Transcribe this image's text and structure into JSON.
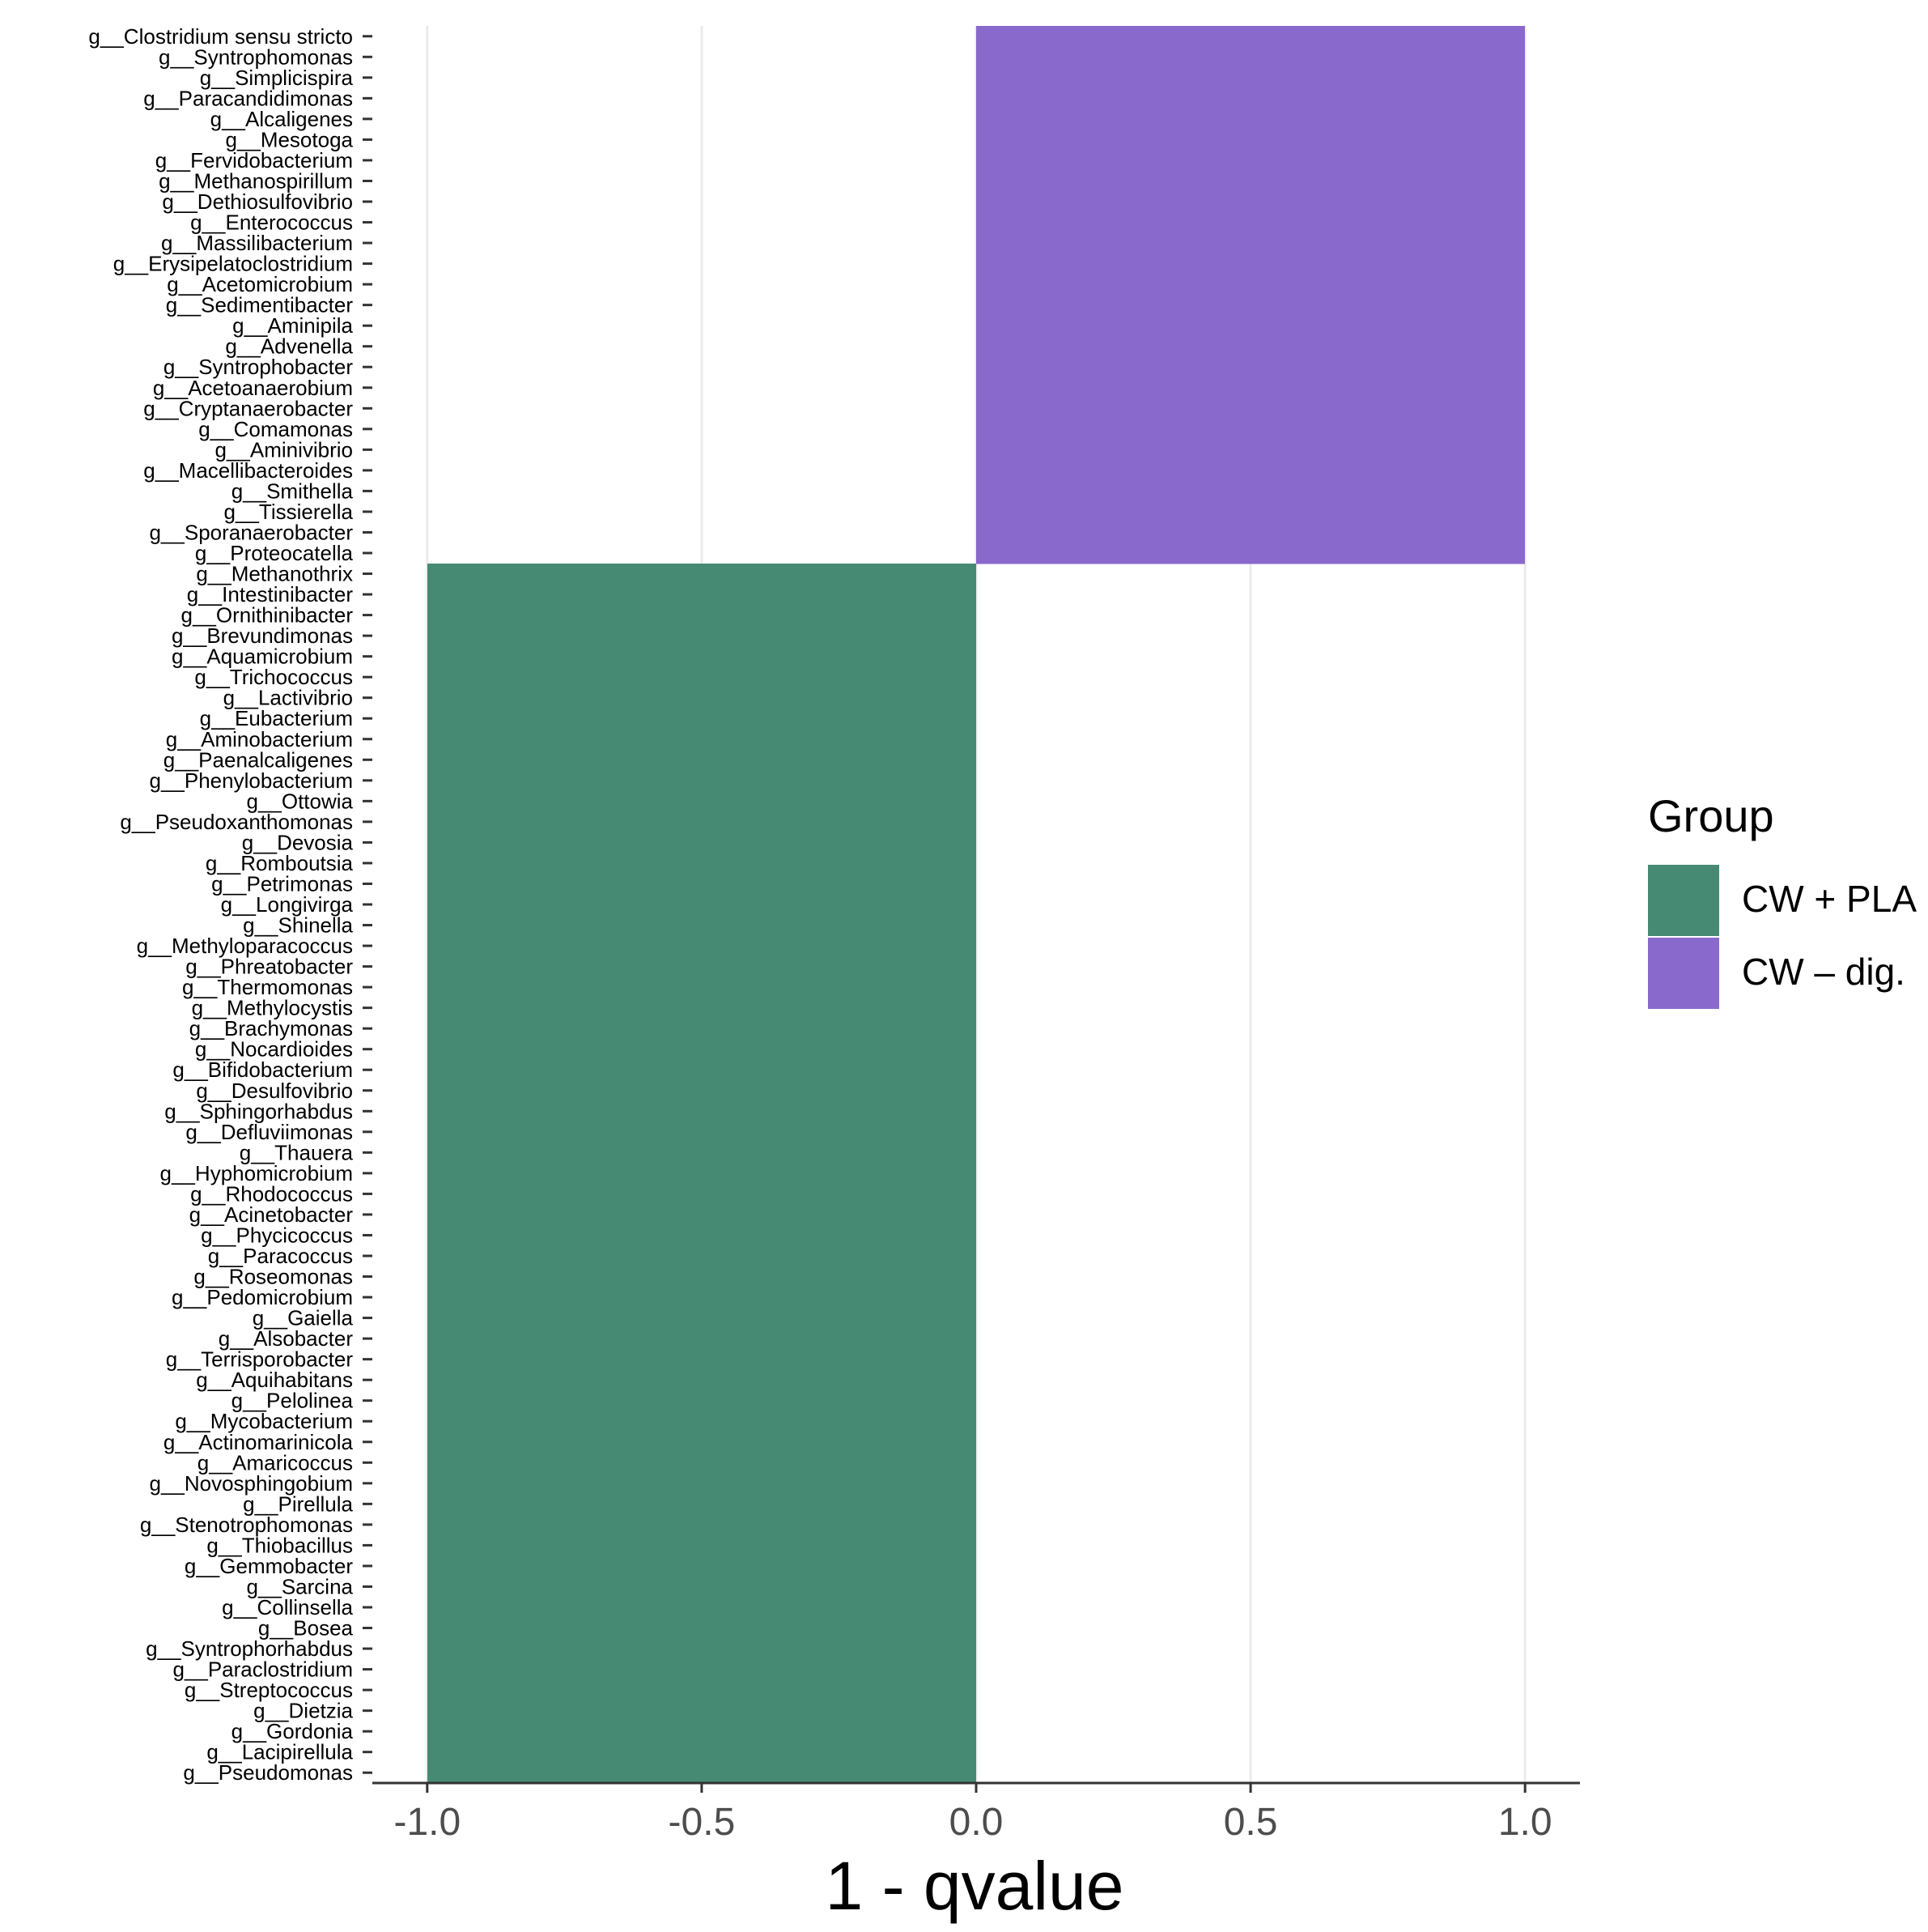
{
  "chart_data": {
    "type": "bar",
    "orientation": "horizontal",
    "xlabel": "1 - qvalue",
    "ylabel": "",
    "xlim": [
      -1.1,
      1.1
    ],
    "xticks": [
      "-1.0",
      "-0.5",
      "0.0",
      "0.5",
      "1.0"
    ],
    "xtick_values": [
      -1.0,
      -0.5,
      0.0,
      0.5,
      1.0
    ],
    "legend": {
      "title": "Group",
      "position": "right",
      "entries": [
        {
          "name": "CW + PLA",
          "color": "#478a73"
        },
        {
          "name": "CW – dig.",
          "color": "#8a69cc"
        }
      ]
    },
    "series": [
      {
        "name": "CW – dig.",
        "color": "#8a69cc",
        "categories": [
          "g__Clostridium sensu stricto",
          "g__Syntrophomonas",
          "g__Simplicispira",
          "g__Paracandidimonas",
          "g__Alcaligenes",
          "g__Mesotoga",
          "g__Fervidobacterium",
          "g__Methanospirillum",
          "g__Dethiosulfovibrio",
          "g__Enterococcus",
          "g__Massilibacterium",
          "g__Erysipelatoclostridium",
          "g__Acetomicrobium",
          "g__Sedimentibacter",
          "g__Aminipila",
          "g__Advenella",
          "g__Syntrophobacter",
          "g__Acetoanaerobium",
          "g__Cryptanaerobacter",
          "g__Comamonas",
          "g__Aminivibrio",
          "g__Macellibacteroides",
          "g__Smithella",
          "g__Tissierella",
          "g__Sporanaerobacter",
          "g__Proteocatella"
        ],
        "value": 1.0
      },
      {
        "name": "CW + PLA",
        "color": "#478a73",
        "categories": [
          "g__Methanothrix",
          "g__Intestinibacter",
          "g__Ornithinibacter",
          "g__Brevundimonas",
          "g__Aquamicrobium",
          "g__Trichococcus",
          "g__Lactivibrio",
          "g__Eubacterium",
          "g__Aminobacterium",
          "g__Paenalcaligenes",
          "g__Phenylobacterium",
          "g__Ottowia",
          "g__Pseudoxanthomonas",
          "g__Devosia",
          "g__Romboutsia",
          "g__Petrimonas",
          "g__Longivirga",
          "g__Shinella",
          "g__Methyloparacoccus",
          "g__Phreatobacter",
          "g__Thermomonas",
          "g__Methylocystis",
          "g__Brachymonas",
          "g__Nocardioides",
          "g__Bifidobacterium",
          "g__Desulfovibrio",
          "g__Sphingorhabdus",
          "g__Defluviimonas",
          "g__Thauera",
          "g__Hyphomicrobium",
          "g__Rhodococcus",
          "g__Acinetobacter",
          "g__Phycicoccus",
          "g__Paracoccus",
          "g__Roseomonas",
          "g__Pedomicrobium",
          "g__Gaiella",
          "g__Alsobacter",
          "g__Terrisporobacter",
          "g__Aquihabitans",
          "g__Pelolinea",
          "g__Mycobacterium",
          "g__Actinomarinicola",
          "g__Amaricoccus",
          "g__Novosphingobium",
          "g__Pirellula",
          "g__Stenotrophomonas",
          "g__Thiobacillus",
          "g__Gemmobacter",
          "g__Sarcina",
          "g__Collinsella",
          "g__Bosea",
          "g__Syntrophorhabdus",
          "g__Paraclostridium",
          "g__Streptococcus",
          "g__Dietzia",
          "g__Gordonia",
          "g__Lacipirellula",
          "g__Pseudomonas"
        ],
        "value": -1.0
      }
    ]
  }
}
